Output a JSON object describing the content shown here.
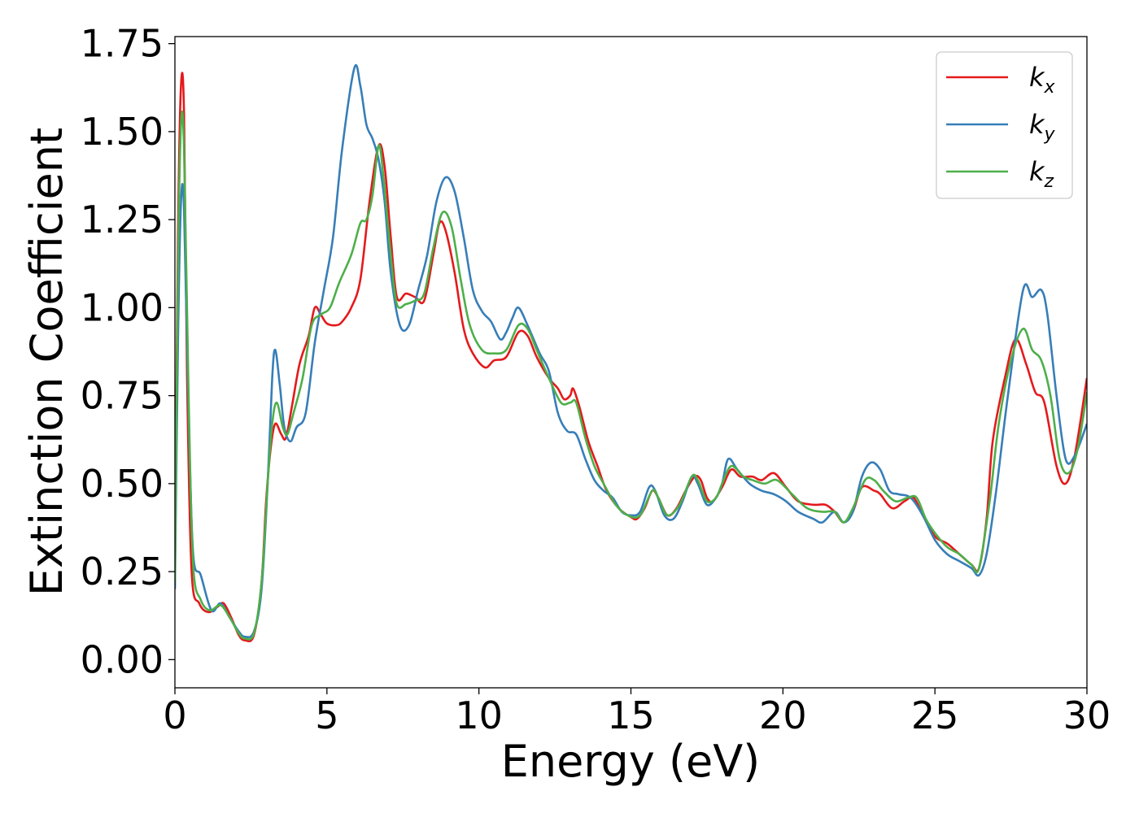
{
  "chart_data": {
    "type": "line",
    "title": "",
    "xlabel": "Energy (eV)",
    "ylabel": "Extinction Coefficient",
    "xlim": [
      0,
      30
    ],
    "ylim": [
      -0.08,
      1.77
    ],
    "xticks": [
      0,
      5,
      10,
      15,
      20,
      25,
      30
    ],
    "xtick_labels": [
      "0",
      "5",
      "10",
      "15",
      "20",
      "25",
      "30"
    ],
    "yticks": [
      0.0,
      0.25,
      0.5,
      0.75,
      1.0,
      1.25,
      1.5,
      1.75
    ],
    "ytick_labels": [
      "0.00",
      "0.25",
      "0.50",
      "0.75",
      "1.00",
      "1.25",
      "1.50",
      "1.75"
    ],
    "grid": false,
    "legend_position": "top-right",
    "series": [
      {
        "name": "k_x",
        "legend_base": "k",
        "legend_sub": "x",
        "color": "#e41a1c",
        "points": [
          [
            0,
            0.25
          ],
          [
            0.1,
            1.2
          ],
          [
            0.2,
            1.63
          ],
          [
            0.3,
            1.55
          ],
          [
            0.4,
            0.8
          ],
          [
            0.55,
            0.25
          ],
          [
            0.8,
            0.16
          ],
          [
            1.1,
            0.135
          ],
          [
            1.4,
            0.15
          ],
          [
            1.6,
            0.16
          ],
          [
            1.85,
            0.12
          ],
          [
            2.1,
            0.07
          ],
          [
            2.3,
            0.055
          ],
          [
            2.6,
            0.07
          ],
          [
            2.85,
            0.22
          ],
          [
            3.0,
            0.45
          ],
          [
            3.15,
            0.6
          ],
          [
            3.3,
            0.67
          ],
          [
            3.5,
            0.64
          ],
          [
            3.65,
            0.63
          ],
          [
            3.85,
            0.72
          ],
          [
            4.1,
            0.84
          ],
          [
            4.4,
            0.92
          ],
          [
            4.6,
            1.0
          ],
          [
            4.8,
            0.98
          ],
          [
            5.0,
            0.955
          ],
          [
            5.3,
            0.95
          ],
          [
            5.5,
            0.96
          ],
          [
            5.8,
            1.0
          ],
          [
            6.1,
            1.08
          ],
          [
            6.4,
            1.3
          ],
          [
            6.7,
            1.46
          ],
          [
            6.9,
            1.4
          ],
          [
            7.1,
            1.2
          ],
          [
            7.3,
            1.03
          ],
          [
            7.6,
            1.04
          ],
          [
            7.9,
            1.03
          ],
          [
            8.2,
            1.02
          ],
          [
            8.5,
            1.15
          ],
          [
            8.7,
            1.24
          ],
          [
            8.9,
            1.22
          ],
          [
            9.2,
            1.1
          ],
          [
            9.5,
            0.94
          ],
          [
            9.8,
            0.87
          ],
          [
            10.2,
            0.83
          ],
          [
            10.5,
            0.85
          ],
          [
            10.9,
            0.86
          ],
          [
            11.3,
            0.93
          ],
          [
            11.6,
            0.92
          ],
          [
            11.9,
            0.86
          ],
          [
            12.3,
            0.8
          ],
          [
            12.6,
            0.77
          ],
          [
            12.8,
            0.74
          ],
          [
            13.0,
            0.75
          ],
          [
            13.1,
            0.77
          ],
          [
            13.3,
            0.72
          ],
          [
            13.6,
            0.62
          ],
          [
            13.9,
            0.55
          ],
          [
            14.2,
            0.48
          ],
          [
            14.6,
            0.43
          ],
          [
            15.0,
            0.405
          ],
          [
            15.2,
            0.4
          ],
          [
            15.45,
            0.43
          ],
          [
            15.7,
            0.48
          ],
          [
            15.9,
            0.46
          ],
          [
            16.2,
            0.41
          ],
          [
            16.5,
            0.43
          ],
          [
            16.8,
            0.48
          ],
          [
            17.1,
            0.52
          ],
          [
            17.3,
            0.51
          ],
          [
            17.5,
            0.46
          ],
          [
            17.7,
            0.45
          ],
          [
            18.0,
            0.49
          ],
          [
            18.3,
            0.54
          ],
          [
            18.6,
            0.52
          ],
          [
            19.0,
            0.52
          ],
          [
            19.3,
            0.51
          ],
          [
            19.7,
            0.53
          ],
          [
            20.1,
            0.49
          ],
          [
            20.5,
            0.45
          ],
          [
            21.0,
            0.44
          ],
          [
            21.4,
            0.44
          ],
          [
            21.7,
            0.42
          ],
          [
            22.0,
            0.39
          ],
          [
            22.3,
            0.42
          ],
          [
            22.6,
            0.49
          ],
          [
            23.0,
            0.48
          ],
          [
            23.2,
            0.47
          ],
          [
            23.6,
            0.43
          ],
          [
            24.0,
            0.45
          ],
          [
            24.3,
            0.46
          ],
          [
            24.6,
            0.41
          ],
          [
            25.0,
            0.35
          ],
          [
            25.4,
            0.33
          ],
          [
            25.8,
            0.3
          ],
          [
            26.2,
            0.27
          ],
          [
            26.45,
            0.26
          ],
          [
            26.7,
            0.4
          ],
          [
            26.9,
            0.62
          ],
          [
            27.3,
            0.8
          ],
          [
            27.65,
            0.91
          ],
          [
            28.0,
            0.84
          ],
          [
            28.3,
            0.76
          ],
          [
            28.6,
            0.73
          ],
          [
            29.0,
            0.55
          ],
          [
            29.3,
            0.5
          ],
          [
            29.6,
            0.58
          ],
          [
            30.0,
            0.8
          ]
        ]
      },
      {
        "name": "k_y",
        "legend_base": "k",
        "legend_sub": "y",
        "color": "#377eb8",
        "points": [
          [
            0,
            0.2
          ],
          [
            0.1,
            0.9
          ],
          [
            0.2,
            1.3
          ],
          [
            0.3,
            1.28
          ],
          [
            0.45,
            0.7
          ],
          [
            0.6,
            0.3
          ],
          [
            0.85,
            0.24
          ],
          [
            1.2,
            0.14
          ],
          [
            1.5,
            0.16
          ],
          [
            1.8,
            0.12
          ],
          [
            2.1,
            0.08
          ],
          [
            2.3,
            0.065
          ],
          [
            2.6,
            0.08
          ],
          [
            2.85,
            0.2
          ],
          [
            3.05,
            0.5
          ],
          [
            3.2,
            0.8
          ],
          [
            3.3,
            0.88
          ],
          [
            3.45,
            0.78
          ],
          [
            3.6,
            0.66
          ],
          [
            3.8,
            0.62
          ],
          [
            4.0,
            0.66
          ],
          [
            4.3,
            0.7
          ],
          [
            4.6,
            0.9
          ],
          [
            4.9,
            1.05
          ],
          [
            5.2,
            1.2
          ],
          [
            5.5,
            1.45
          ],
          [
            5.9,
            1.68
          ],
          [
            6.1,
            1.63
          ],
          [
            6.3,
            1.52
          ],
          [
            6.5,
            1.48
          ],
          [
            6.7,
            1.42
          ],
          [
            6.9,
            1.3
          ],
          [
            7.1,
            1.1
          ],
          [
            7.4,
            0.95
          ],
          [
            7.7,
            0.95
          ],
          [
            8.0,
            1.05
          ],
          [
            8.3,
            1.15
          ],
          [
            8.6,
            1.3
          ],
          [
            8.9,
            1.37
          ],
          [
            9.2,
            1.33
          ],
          [
            9.5,
            1.2
          ],
          [
            9.8,
            1.05
          ],
          [
            10.1,
            0.99
          ],
          [
            10.4,
            0.96
          ],
          [
            10.7,
            0.91
          ],
          [
            10.9,
            0.93
          ],
          [
            11.1,
            0.97
          ],
          [
            11.3,
            1.0
          ],
          [
            11.6,
            0.95
          ],
          [
            12.0,
            0.87
          ],
          [
            12.3,
            0.82
          ],
          [
            12.6,
            0.7
          ],
          [
            12.9,
            0.65
          ],
          [
            13.2,
            0.64
          ],
          [
            13.5,
            0.57
          ],
          [
            13.8,
            0.51
          ],
          [
            14.1,
            0.48
          ],
          [
            14.4,
            0.46
          ],
          [
            14.7,
            0.42
          ],
          [
            15.0,
            0.41
          ],
          [
            15.3,
            0.42
          ],
          [
            15.6,
            0.49
          ],
          [
            15.8,
            0.48
          ],
          [
            16.1,
            0.41
          ],
          [
            16.4,
            0.4
          ],
          [
            16.7,
            0.45
          ],
          [
            17.0,
            0.52
          ],
          [
            17.2,
            0.5
          ],
          [
            17.5,
            0.44
          ],
          [
            17.8,
            0.46
          ],
          [
            18.0,
            0.5
          ],
          [
            18.2,
            0.57
          ],
          [
            18.5,
            0.54
          ],
          [
            18.9,
            0.5
          ],
          [
            19.3,
            0.48
          ],
          [
            19.7,
            0.47
          ],
          [
            20.1,
            0.45
          ],
          [
            20.5,
            0.42
          ],
          [
            21.0,
            0.4
          ],
          [
            21.3,
            0.39
          ],
          [
            21.7,
            0.42
          ],
          [
            22.0,
            0.39
          ],
          [
            22.3,
            0.42
          ],
          [
            22.6,
            0.52
          ],
          [
            22.9,
            0.56
          ],
          [
            23.2,
            0.54
          ],
          [
            23.5,
            0.48
          ],
          [
            23.8,
            0.47
          ],
          [
            24.2,
            0.46
          ],
          [
            24.6,
            0.41
          ],
          [
            25.0,
            0.34
          ],
          [
            25.4,
            0.3
          ],
          [
            25.8,
            0.28
          ],
          [
            26.2,
            0.26
          ],
          [
            26.45,
            0.24
          ],
          [
            26.7,
            0.3
          ],
          [
            27.0,
            0.47
          ],
          [
            27.4,
            0.75
          ],
          [
            27.9,
            1.05
          ],
          [
            28.2,
            1.03
          ],
          [
            28.5,
            1.05
          ],
          [
            28.7,
            0.98
          ],
          [
            29.0,
            0.75
          ],
          [
            29.3,
            0.57
          ],
          [
            29.6,
            0.58
          ],
          [
            30.0,
            0.67
          ]
        ]
      },
      {
        "name": "k_z",
        "legend_base": "k",
        "legend_sub": "z",
        "color": "#4daf4a",
        "points": [
          [
            0,
            0.22
          ],
          [
            0.1,
            1.1
          ],
          [
            0.2,
            1.52
          ],
          [
            0.3,
            1.45
          ],
          [
            0.45,
            0.75
          ],
          [
            0.6,
            0.27
          ],
          [
            0.85,
            0.17
          ],
          [
            1.15,
            0.14
          ],
          [
            1.5,
            0.155
          ],
          [
            1.8,
            0.12
          ],
          [
            2.1,
            0.075
          ],
          [
            2.3,
            0.06
          ],
          [
            2.6,
            0.075
          ],
          [
            2.85,
            0.22
          ],
          [
            3.05,
            0.5
          ],
          [
            3.2,
            0.67
          ],
          [
            3.35,
            0.73
          ],
          [
            3.55,
            0.66
          ],
          [
            3.7,
            0.64
          ],
          [
            3.9,
            0.7
          ],
          [
            4.2,
            0.8
          ],
          [
            4.5,
            0.95
          ],
          [
            4.8,
            0.98
          ],
          [
            5.1,
            1.0
          ],
          [
            5.4,
            1.07
          ],
          [
            5.8,
            1.15
          ],
          [
            6.1,
            1.24
          ],
          [
            6.3,
            1.25
          ],
          [
            6.5,
            1.32
          ],
          [
            6.7,
            1.46
          ],
          [
            6.85,
            1.38
          ],
          [
            7.1,
            1.15
          ],
          [
            7.3,
            1.01
          ],
          [
            7.6,
            1.01
          ],
          [
            7.9,
            1.02
          ],
          [
            8.2,
            1.04
          ],
          [
            8.5,
            1.17
          ],
          [
            8.8,
            1.27
          ],
          [
            9.1,
            1.23
          ],
          [
            9.4,
            1.08
          ],
          [
            9.7,
            0.95
          ],
          [
            10.1,
            0.88
          ],
          [
            10.5,
            0.87
          ],
          [
            10.9,
            0.88
          ],
          [
            11.3,
            0.95
          ],
          [
            11.6,
            0.94
          ],
          [
            11.9,
            0.88
          ],
          [
            12.3,
            0.8
          ],
          [
            12.7,
            0.73
          ],
          [
            13.0,
            0.73
          ],
          [
            13.2,
            0.73
          ],
          [
            13.5,
            0.63
          ],
          [
            13.8,
            0.55
          ],
          [
            14.1,
            0.5
          ],
          [
            14.5,
            0.44
          ],
          [
            14.9,
            0.41
          ],
          [
            15.3,
            0.41
          ],
          [
            15.7,
            0.48
          ],
          [
            15.9,
            0.46
          ],
          [
            16.2,
            0.41
          ],
          [
            16.6,
            0.44
          ],
          [
            17.0,
            0.52
          ],
          [
            17.2,
            0.51
          ],
          [
            17.5,
            0.45
          ],
          [
            17.8,
            0.46
          ],
          [
            18.0,
            0.5
          ],
          [
            18.3,
            0.55
          ],
          [
            18.7,
            0.52
          ],
          [
            19.0,
            0.51
          ],
          [
            19.4,
            0.5
          ],
          [
            19.8,
            0.51
          ],
          [
            20.3,
            0.47
          ],
          [
            20.8,
            0.43
          ],
          [
            21.3,
            0.42
          ],
          [
            21.7,
            0.42
          ],
          [
            22.0,
            0.39
          ],
          [
            22.3,
            0.43
          ],
          [
            22.7,
            0.51
          ],
          [
            23.0,
            0.51
          ],
          [
            23.3,
            0.48
          ],
          [
            23.7,
            0.45
          ],
          [
            24.1,
            0.46
          ],
          [
            24.4,
            0.46
          ],
          [
            24.7,
            0.4
          ],
          [
            25.0,
            0.36
          ],
          [
            25.4,
            0.32
          ],
          [
            25.8,
            0.3
          ],
          [
            26.2,
            0.27
          ],
          [
            26.45,
            0.26
          ],
          [
            26.8,
            0.45
          ],
          [
            27.1,
            0.67
          ],
          [
            27.5,
            0.85
          ],
          [
            27.9,
            0.94
          ],
          [
            28.2,
            0.88
          ],
          [
            28.5,
            0.85
          ],
          [
            28.8,
            0.75
          ],
          [
            29.1,
            0.57
          ],
          [
            29.4,
            0.53
          ],
          [
            29.7,
            0.6
          ],
          [
            30.0,
            0.76
          ]
        ]
      }
    ]
  }
}
